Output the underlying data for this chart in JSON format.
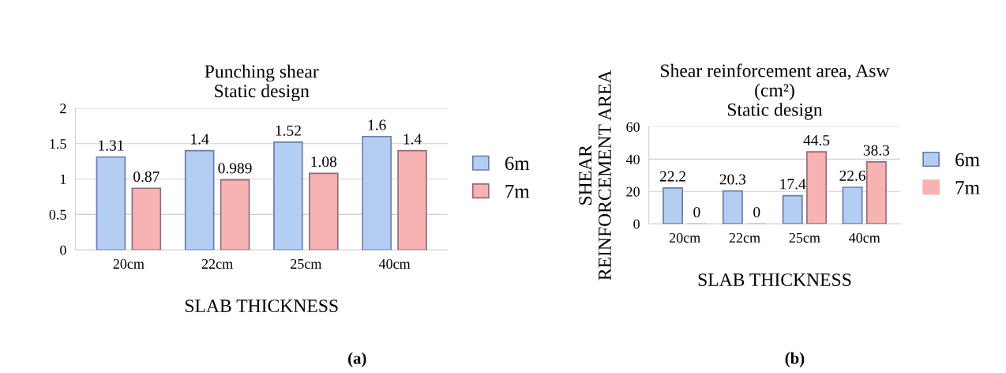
{
  "chart_data": [
    {
      "type": "bar",
      "title": "Punching shear\nStatic design",
      "xlabel": "SLAB THICKNESS",
      "categories": [
        "20cm",
        "22cm",
        "25cm",
        "40cm"
      ],
      "series": [
        {
          "name": "6m",
          "color": "#b4cdf2",
          "values": [
            1.31,
            1.4,
            1.52,
            1.6
          ]
        },
        {
          "name": "7m",
          "color": "#f6b3b1",
          "values": [
            0.87,
            0.989,
            1.08,
            1.4
          ]
        }
      ],
      "ylim": [
        0,
        2
      ],
      "yticks": [
        0,
        0.5,
        1,
        1.5,
        2
      ],
      "grid": "y",
      "legend": "right",
      "data_labels": true,
      "annotations": [
        "(a)"
      ]
    },
    {
      "type": "bar",
      "title": "Shear reinforcement area, Asw\n(cm²)\nStatic design",
      "xlabel": "SLAB THICKNESS",
      "ylabel": "SHEAR\nREINFORCEMENT AREA",
      "categories": [
        "20cm",
        "22cm",
        "25cm",
        "40cm"
      ],
      "series": [
        {
          "name": "6m",
          "color": "#b4cdf2",
          "values": [
            22.2,
            20.3,
            17.4,
            22.6
          ]
        },
        {
          "name": "7m",
          "color": "#f6b3b1",
          "values": [
            0,
            0,
            44.5,
            38.3
          ]
        }
      ],
      "ylim": [
        0,
        60
      ],
      "yticks": [
        0,
        20,
        40,
        60
      ],
      "grid": "y",
      "legend": "right",
      "data_labels": true,
      "annotations": [
        "(b)"
      ]
    }
  ]
}
